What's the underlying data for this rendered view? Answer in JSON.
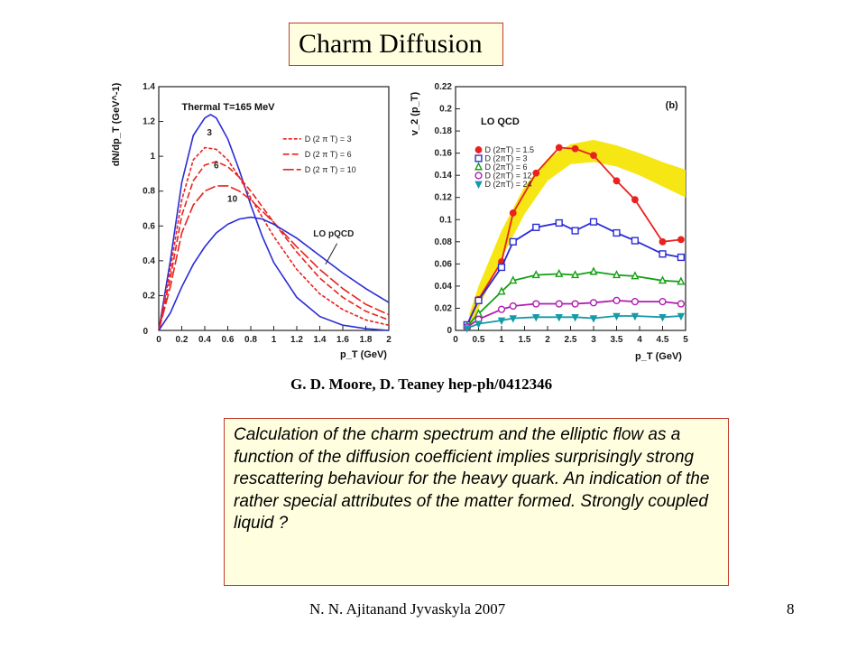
{
  "slide": {
    "title": "Charm Diffusion",
    "citation": "G. D. Moore, D. Teaney hep-ph/0412346",
    "description": "Calculation of the charm spectrum and the elliptic flow as a function of the diffusion coefficient implies surprisingly strong rescattering behaviour for the heavy quark. An indication of the rather special attributes of the matter formed. Strongly coupled liquid ?",
    "footer": "N. N. Ajitanand Jyvaskyla 2007",
    "page_number": "8"
  },
  "colors": {
    "box_fill": "#ffffe0",
    "box_border": "#c0392b",
    "red": "#e8231f",
    "blue": "#2b2bd6",
    "green": "#14a014",
    "magenta": "#b01cb0",
    "cyan": "#159aa8",
    "band": "#f5e614",
    "loqcd_text": "#2d5fd8"
  },
  "chart_data": [
    {
      "type": "line",
      "title": "Thermal T=165 MeV",
      "ylabel": "dN/dp_T (GeV^-1)",
      "xlabel": "p_T (GeV)",
      "xlim": [
        0,
        2
      ],
      "ylim": [
        0,
        1.4
      ],
      "xticks": [
        "0",
        "0.2",
        "0.4",
        "0.6",
        "0.8",
        "1",
        "1.2",
        "1.4",
        "1.6",
        "1.8",
        "2"
      ],
      "yticks": [
        "0.2",
        "0.4",
        "0.6",
        "0.8",
        "1",
        "1.2",
        "1.4"
      ],
      "legend": [
        "D (2 π T) = 3",
        "D (2 π T) = 6",
        "D (2 π T) = 10"
      ],
      "legend_position": "top-right",
      "annotations": [
        "3",
        "6",
        "10",
        "LO pQCD"
      ],
      "series": [
        {
          "name": "Thermal",
          "color": "blue",
          "dash": "solid",
          "x": [
            0,
            0.1,
            0.2,
            0.3,
            0.4,
            0.45,
            0.5,
            0.6,
            0.7,
            0.8,
            0.9,
            1.0,
            1.2,
            1.4,
            1.6,
            1.8,
            2.0
          ],
          "y": [
            0,
            0.4,
            0.85,
            1.12,
            1.22,
            1.24,
            1.22,
            1.1,
            0.92,
            0.72,
            0.54,
            0.39,
            0.19,
            0.08,
            0.03,
            0.01,
            0.0
          ]
        },
        {
          "name": "D (2 π T) = 3",
          "color": "red",
          "dash": "dense",
          "x": [
            0,
            0.1,
            0.2,
            0.3,
            0.4,
            0.5,
            0.6,
            0.7,
            0.8,
            1.0,
            1.2,
            1.4,
            1.6,
            1.8,
            2.0
          ],
          "y": [
            0,
            0.35,
            0.75,
            0.98,
            1.05,
            1.04,
            0.98,
            0.88,
            0.76,
            0.54,
            0.35,
            0.21,
            0.12,
            0.06,
            0.03
          ]
        },
        {
          "name": "D (2 π T) = 6",
          "color": "red",
          "dash": "dash",
          "x": [
            0,
            0.1,
            0.2,
            0.3,
            0.4,
            0.5,
            0.6,
            0.7,
            0.8,
            1.0,
            1.2,
            1.4,
            1.6,
            1.8,
            2.0
          ],
          "y": [
            0,
            0.3,
            0.66,
            0.86,
            0.95,
            0.97,
            0.94,
            0.88,
            0.8,
            0.62,
            0.45,
            0.3,
            0.19,
            0.11,
            0.06
          ]
        },
        {
          "name": "D (2 π T) = 10",
          "color": "red",
          "dash": "longdash",
          "x": [
            0,
            0.1,
            0.2,
            0.3,
            0.4,
            0.5,
            0.6,
            0.7,
            0.8,
            1.0,
            1.2,
            1.4,
            1.6,
            1.8,
            2.0
          ],
          "y": [
            0,
            0.25,
            0.56,
            0.72,
            0.8,
            0.83,
            0.83,
            0.8,
            0.75,
            0.62,
            0.48,
            0.35,
            0.24,
            0.15,
            0.09
          ]
        },
        {
          "name": "LO pQCD",
          "color": "blue",
          "dash": "solid",
          "x": [
            0,
            0.1,
            0.2,
            0.3,
            0.4,
            0.5,
            0.6,
            0.7,
            0.8,
            0.9,
            1.0,
            1.2,
            1.4,
            1.6,
            1.8,
            2.0
          ],
          "y": [
            0,
            0.1,
            0.25,
            0.38,
            0.48,
            0.56,
            0.61,
            0.64,
            0.65,
            0.64,
            0.61,
            0.53,
            0.43,
            0.33,
            0.24,
            0.16
          ]
        }
      ]
    },
    {
      "type": "line",
      "title": "LO QCD",
      "panel_label": "(b)",
      "ylabel": "v_2 (p_T)",
      "xlabel": "p_T (GeV)",
      "xlim": [
        0,
        5
      ],
      "ylim": [
        0,
        0.22
      ],
      "xticks": [
        "0",
        "0.5",
        "1",
        "1.5",
        "2",
        "2.5",
        "3",
        "3.5",
        "4",
        "4.5",
        "5"
      ],
      "yticks": [
        "0",
        "0.02",
        "0.04",
        "0.06",
        "0.08",
        "0.1",
        "0.12",
        "0.14",
        "0.16",
        "0.18",
        "0.2",
        "0.22"
      ],
      "legend": [
        "D (2πT) = 1.5",
        "D (2πT) = 3",
        "D (2πT) = 6",
        "D (2πT) = 12",
        "D (2πT) = 24"
      ],
      "legend_position": "top-left",
      "band": {
        "x": [
          0.3,
          0.5,
          1.0,
          1.5,
          2.0,
          2.5,
          3.0,
          3.5,
          4.0,
          4.5,
          5.0
        ],
        "lower": [
          0.0,
          0.02,
          0.065,
          0.105,
          0.135,
          0.15,
          0.152,
          0.148,
          0.14,
          0.13,
          0.12
        ],
        "upper": [
          0.015,
          0.04,
          0.09,
          0.13,
          0.155,
          0.168,
          0.172,
          0.167,
          0.16,
          0.152,
          0.145
        ]
      },
      "series": [
        {
          "name": "D (2πT) = 1.5",
          "color": "red",
          "marker": "filled-circle",
          "x": [
            0.25,
            0.5,
            1.0,
            1.25,
            1.75,
            2.25,
            2.6,
            3.0,
            3.5,
            3.9,
            4.5,
            4.9
          ],
          "y": [
            0.005,
            0.028,
            0.062,
            0.106,
            0.142,
            0.165,
            0.164,
            0.158,
            0.135,
            0.118,
            0.08,
            0.082
          ]
        },
        {
          "name": "D (2πT) = 3",
          "color": "blue",
          "marker": "open-square",
          "x": [
            0.25,
            0.5,
            1.0,
            1.25,
            1.75,
            2.25,
            2.6,
            3.0,
            3.5,
            3.9,
            4.5,
            4.9
          ],
          "y": [
            0.005,
            0.027,
            0.057,
            0.08,
            0.093,
            0.097,
            0.09,
            0.098,
            0.088,
            0.081,
            0.069,
            0.066
          ]
        },
        {
          "name": "D (2πT) = 6",
          "color": "green",
          "marker": "open-triangle",
          "x": [
            0.25,
            0.5,
            1.0,
            1.25,
            1.75,
            2.25,
            2.6,
            3.0,
            3.5,
            3.9,
            4.5,
            4.9
          ],
          "y": [
            0.004,
            0.015,
            0.035,
            0.045,
            0.05,
            0.051,
            0.05,
            0.053,
            0.05,
            0.049,
            0.045,
            0.044
          ]
        },
        {
          "name": "D (2πT) = 12",
          "color": "magenta",
          "marker": "open-circle",
          "x": [
            0.25,
            0.5,
            1.0,
            1.25,
            1.75,
            2.25,
            2.6,
            3.0,
            3.5,
            3.9,
            4.5,
            4.9
          ],
          "y": [
            0.003,
            0.01,
            0.019,
            0.022,
            0.024,
            0.024,
            0.024,
            0.025,
            0.027,
            0.026,
            0.026,
            0.024
          ]
        },
        {
          "name": "D (2πT) = 24",
          "color": "cyan",
          "marker": "filled-triangle-down",
          "x": [
            0.25,
            0.5,
            1.0,
            1.25,
            1.75,
            2.25,
            2.6,
            3.0,
            3.5,
            3.9,
            4.5,
            4.9
          ],
          "y": [
            0.002,
            0.006,
            0.009,
            0.011,
            0.012,
            0.012,
            0.012,
            0.011,
            0.013,
            0.013,
            0.012,
            0.013
          ]
        }
      ]
    }
  ]
}
